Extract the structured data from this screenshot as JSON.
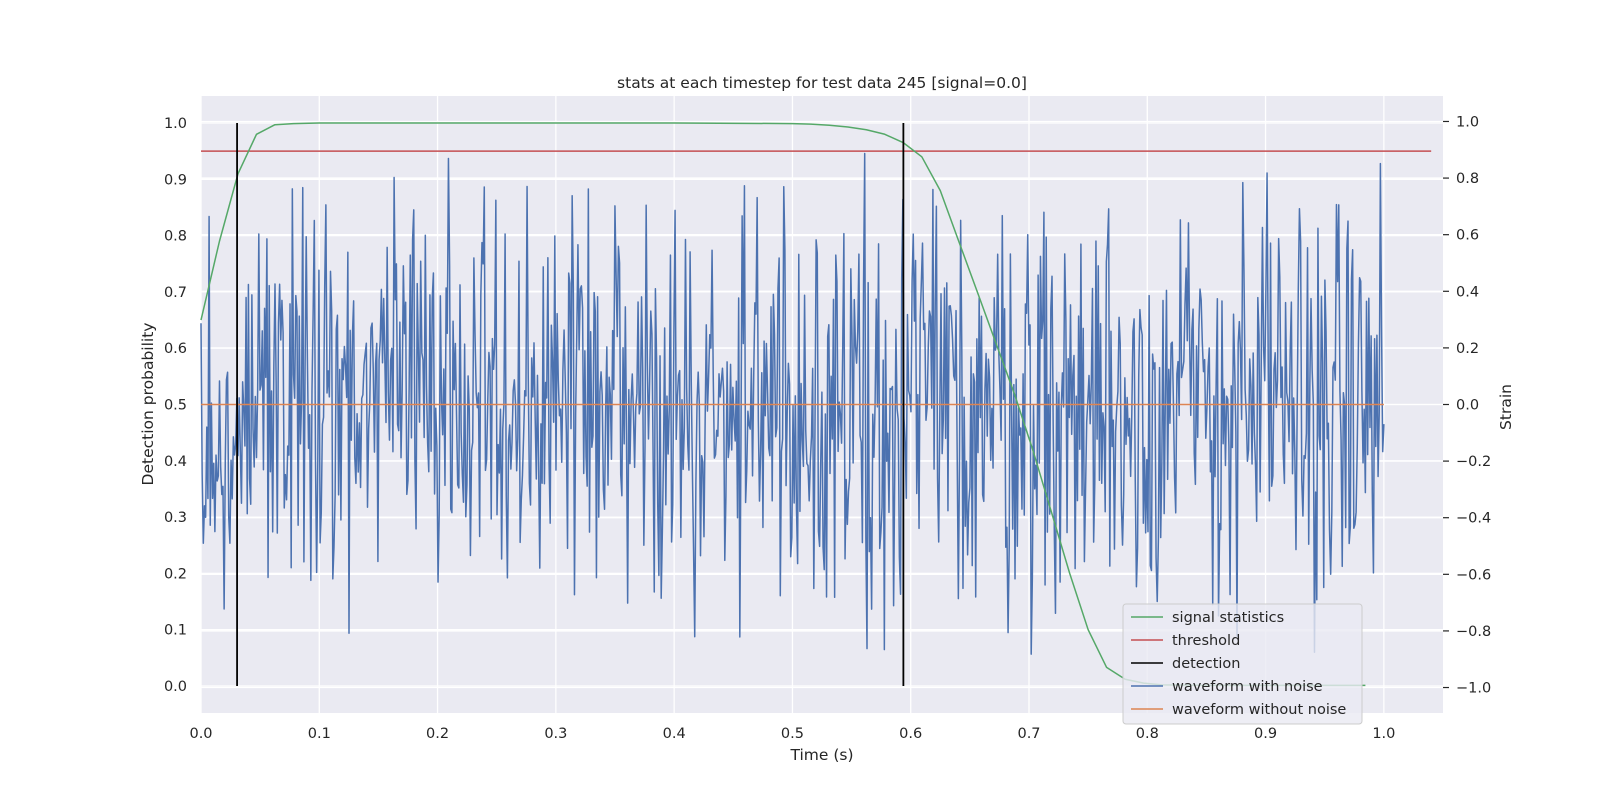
{
  "chart_data": {
    "type": "line",
    "title": "stats at each timestep for test data 245 [signal=0.0]",
    "xlabel": "Time (s)",
    "ylabel_left": "Detection probability",
    "ylabel_right": "Strain",
    "xlim": [
      0.0,
      1.05
    ],
    "ylim_left": [
      -0.048,
      1.048
    ],
    "ylim_right": [
      -1.09,
      1.09
    ],
    "x_ticks": [
      0.0,
      0.1,
      0.2,
      0.3,
      0.4,
      0.5,
      0.6,
      0.7,
      0.8,
      0.9,
      1.0
    ],
    "x_tick_labels": [
      "0.0",
      "0.1",
      "0.2",
      "0.3",
      "0.4",
      "0.5",
      "0.6",
      "0.7",
      "0.8",
      "0.9",
      "1.0"
    ],
    "y_left_ticks": [
      0.0,
      0.1,
      0.2,
      0.3,
      0.4,
      0.5,
      0.6,
      0.7,
      0.8,
      0.9,
      1.0
    ],
    "y_left_tick_labels": [
      "0.0",
      "0.1",
      "0.2",
      "0.3",
      "0.4",
      "0.5",
      "0.6",
      "0.7",
      "0.8",
      "0.9",
      "1.0"
    ],
    "y_right_ticks": [
      -1.0,
      -0.8,
      -0.6,
      -0.4,
      -0.2,
      0.0,
      0.2,
      0.4,
      0.6,
      0.8,
      1.0
    ],
    "y_right_tick_labels": [
      "−1.0",
      "−0.8",
      "−0.6",
      "−0.4",
      "−0.2",
      "0.0",
      "0.2",
      "0.4",
      "0.6",
      "0.8",
      "1.0"
    ],
    "grid": true,
    "legend_position": "lower-right",
    "series": [
      {
        "name": "signal statistics",
        "axis": "left",
        "color": "#55a868",
        "x": [
          0.0,
          0.0156,
          0.0313,
          0.0469,
          0.0625,
          0.0781,
          0.1,
          0.2,
          0.3,
          0.4,
          0.5,
          0.5156,
          0.5313,
          0.5469,
          0.5625,
          0.5781,
          0.5938,
          0.6094,
          0.625,
          0.6406,
          0.6563,
          0.6719,
          0.6875,
          0.7031,
          0.7188,
          0.7344,
          0.75,
          0.7656,
          0.7813,
          0.7969,
          0.8125,
          0.85,
          0.9,
          0.95,
          0.9844
        ],
        "y": [
          0.65,
          0.79,
          0.91,
          0.98,
          0.997,
          0.999,
          1.0,
          1.0,
          1.0,
          1.0,
          0.999,
          0.998,
          0.996,
          0.993,
          0.988,
          0.98,
          0.965,
          0.94,
          0.88,
          0.79,
          0.7,
          0.61,
          0.52,
          0.42,
          0.31,
          0.2,
          0.1,
          0.033,
          0.012,
          0.005,
          0.002,
          0.001,
          0.001,
          0.001,
          0.001
        ]
      },
      {
        "name": "threshold",
        "axis": "left",
        "color": "#c44e52",
        "x": [
          0.0,
          1.04
        ],
        "y": [
          0.95,
          0.95
        ]
      },
      {
        "name": "detection",
        "axis": "left",
        "color": "#000000",
        "vlines": [
          0.0305,
          0.5938
        ],
        "ymin": 0.0,
        "ymax": 1.0
      },
      {
        "name": "waveform with noise",
        "axis": "right",
        "color": "#4c72b0",
        "x_start": 0.0,
        "x_end": 1.0,
        "points": 1024,
        "note_values": "dense noise trace, approx. uniform in [-1.0, 1.0] around 0.0"
      },
      {
        "name": "waveform without noise",
        "axis": "right",
        "color": "#dd8452",
        "x": [
          0.0,
          1.0
        ],
        "y": [
          0.0,
          0.0
        ]
      }
    ]
  },
  "legend": {
    "items": [
      {
        "label": "signal statistics",
        "color": "#55a868"
      },
      {
        "label": "threshold",
        "color": "#c44e52"
      },
      {
        "label": "detection",
        "color": "#000000"
      },
      {
        "label": "waveform with noise",
        "color": "#4c72b0"
      },
      {
        "label": "waveform without noise",
        "color": "#dd8452"
      }
    ]
  },
  "style": {
    "plot_background": "#eaeaf2",
    "grid_color": "#ffffff"
  }
}
